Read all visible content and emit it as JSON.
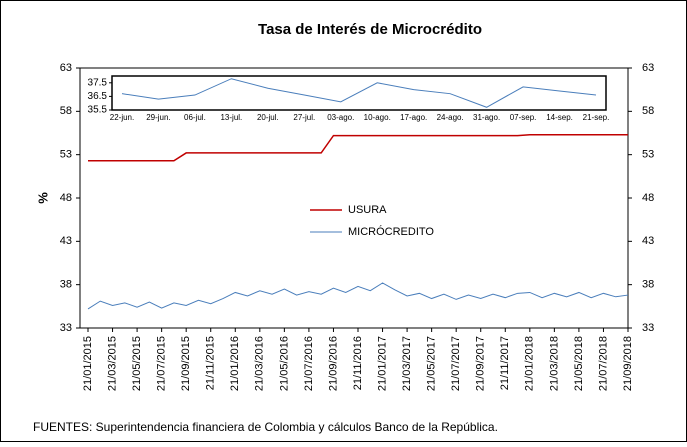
{
  "chart_data": [
    {
      "type": "line",
      "title": "Tasa de Interés de Microcrédito",
      "y_label": "%",
      "categories": [
        "21/01/2015",
        null,
        "21/03/2015",
        null,
        "21/05/2015",
        null,
        "21/07/2015",
        null,
        "21/09/2015",
        null,
        "21/11/2015",
        null,
        "21/01/2016",
        null,
        "21/03/2016",
        null,
        "21/05/2016",
        null,
        "21/07/2016",
        null,
        "21/09/2016",
        null,
        "21/11/2016",
        null,
        "21/01/2017",
        null,
        "21/03/2017",
        null,
        "21/05/2017",
        null,
        "21/07/2017",
        null,
        "21/09/2017",
        null,
        "21/11/2017",
        null,
        "21/01/2018",
        null,
        "21/03/2018",
        null,
        "21/05/2018",
        null,
        "21/07/2018",
        null,
        "21/09/2018"
      ],
      "series": [
        {
          "name": "USURA",
          "color": "#c00000",
          "values": [
            52.3,
            52.3,
            52.3,
            52.3,
            52.3,
            52.3,
            52.3,
            52.3,
            53.2,
            53.2,
            53.2,
            53.2,
            53.2,
            53.2,
            53.2,
            53.2,
            53.2,
            53.2,
            53.2,
            53.2,
            55.2,
            55.2,
            55.2,
            55.2,
            55.2,
            55.2,
            55.2,
            55.2,
            55.2,
            55.2,
            55.2,
            55.2,
            55.2,
            55.2,
            55.2,
            55.2,
            55.3,
            55.3,
            55.3,
            55.3,
            55.3,
            55.3,
            55.3,
            55.3,
            55.3
          ]
        },
        {
          "name": "MICRÓCREDITO",
          "color": "#4a7ebb",
          "values": [
            35.2,
            36.1,
            35.6,
            35.9,
            35.4,
            36.0,
            35.3,
            35.9,
            35.6,
            36.2,
            35.8,
            36.4,
            37.1,
            36.7,
            37.3,
            36.9,
            37.5,
            36.8,
            37.2,
            36.9,
            37.6,
            37.1,
            37.8,
            37.3,
            38.2,
            37.4,
            36.7,
            37.0,
            36.4,
            36.9,
            36.3,
            36.8,
            36.4,
            36.9,
            36.5,
            37.0,
            37.1,
            36.5,
            37.0,
            36.6,
            37.1,
            36.5,
            37.0,
            36.6,
            36.8
          ]
        }
      ],
      "ylim": [
        33,
        63
      ],
      "yticks": [
        33,
        38,
        43,
        48,
        53,
        58,
        63
      ],
      "y2lim": [
        33,
        63
      ],
      "y2ticks": [
        33,
        38,
        43,
        48,
        53,
        58,
        63
      ],
      "legend": "center"
    },
    {
      "type": "line",
      "categories": [
        "22-jun.",
        "29-jun.",
        "06-jul.",
        "13-jul.",
        "20-jul.",
        "27-jul.",
        "03-ago.",
        "10-ago.",
        "17-ago.",
        "24-ago.",
        "31-ago.",
        "07-sep.",
        "14-sep.",
        "21-sep."
      ],
      "series": [
        {
          "color": "#4a7ebb",
          "values": [
            36.7,
            36.3,
            36.6,
            37.8,
            37.1,
            36.6,
            36.1,
            37.5,
            37.0,
            36.7,
            35.7,
            37.2,
            36.9,
            36.6
          ]
        }
      ],
      "ylim": [
        35.5,
        38
      ],
      "yticks": [
        35.5,
        36.5,
        37.5
      ]
    }
  ],
  "footer": "FUENTES: Superintendencia financiera de Colombia y cálculos Banco de la República."
}
